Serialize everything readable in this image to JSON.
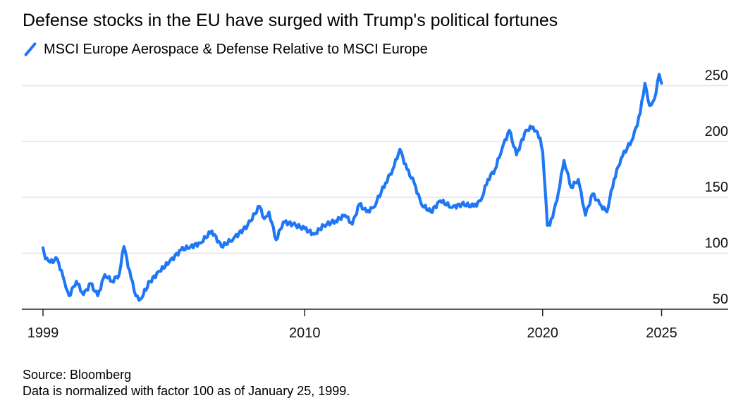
{
  "chart_data": {
    "type": "line",
    "title": "Defense stocks in the EU have surged with Trump's political fortunes",
    "legend": [
      {
        "label": "MSCI Europe Aerospace & Defense Relative to MSCI Europe",
        "color": "#1F77F5"
      }
    ],
    "legend_placement": "top-left",
    "xlabel": "",
    "ylabel": "",
    "x_ticks": [
      {
        "value": 1999,
        "label": "1999"
      },
      {
        "value": 2010,
        "label": "2010"
      },
      {
        "value": 2020,
        "label": "2020"
      },
      {
        "value": 2025,
        "label": "2025"
      }
    ],
    "y_ticks": [
      {
        "value": 50,
        "label": "50"
      },
      {
        "value": 100,
        "label": "100"
      },
      {
        "value": 150,
        "label": "150"
      },
      {
        "value": 200,
        "label": "200"
      },
      {
        "value": 250,
        "label": "250"
      }
    ],
    "xlim": [
      1999,
      2027.8
    ],
    "ylim": [
      50,
      250
    ],
    "y_axis_side": "right",
    "grid": true,
    "series": [
      {
        "name": "MSCI Europe Aerospace & Defense Relative to MSCI Europe",
        "color": "#1F77F5",
        "x": [
          1999.0,
          1999.1,
          1999.3,
          1999.6,
          1999.9,
          2000.1,
          2000.4,
          2000.7,
          2001.0,
          2001.3,
          2001.6,
          2001.9,
          2002.2,
          2002.4,
          2002.7,
          2002.9,
          2003.1,
          2003.5,
          2003.9,
          2004.3,
          2004.8,
          2005.2,
          2005.6,
          2006.1,
          2006.5,
          2007.0,
          2007.6,
          2008.1,
          2008.3,
          2008.5,
          2008.8,
          2009.1,
          2009.5,
          2010.0,
          2010.4,
          2010.8,
          2011.3,
          2011.7,
          2012.0,
          2012.3,
          2012.6,
          2012.9,
          2013.4,
          2013.7,
          2014.0,
          2014.3,
          2014.6,
          2014.9,
          2015.3,
          2015.7,
          2016.2,
          2016.6,
          2017.1,
          2017.4,
          2017.7,
          2018.0,
          2018.3,
          2018.6,
          2018.9,
          2019.3,
          2019.6,
          2019.9,
          2020.0,
          2020.2,
          2020.3,
          2020.6,
          2020.9,
          2021.2,
          2021.5,
          2021.8,
          2022.1,
          2022.4,
          2022.7,
          2023.0,
          2023.3,
          2023.8,
          2024.1,
          2024.3,
          2024.5,
          2024.7,
          2024.9,
          2025.0
        ],
        "values": [
          105,
          95,
          92,
          95,
          75,
          62,
          75,
          63,
          73,
          62,
          81,
          75,
          81,
          106,
          78,
          62,
          59,
          75,
          84,
          92,
          103,
          106,
          109,
          120,
          106,
          113,
          125,
          142,
          131,
          137,
          112,
          128,
          126,
          122,
          117,
          125,
          129,
          134,
          126,
          144,
          137,
          141,
          163,
          175,
          193,
          175,
          163,
          144,
          137,
          147,
          141,
          144,
          142,
          147,
          166,
          175,
          194,
          210,
          188,
          210,
          213,
          203,
          191,
          125,
          125,
          147,
          183,
          159,
          166,
          134,
          153,
          144,
          137,
          166,
          185,
          203,
          225,
          252,
          232,
          238,
          260,
          252
        ]
      }
    ]
  },
  "footer": {
    "source": "Source: Bloomberg",
    "note": "Data is normalized with factor 100 as of January 25, 1999."
  }
}
